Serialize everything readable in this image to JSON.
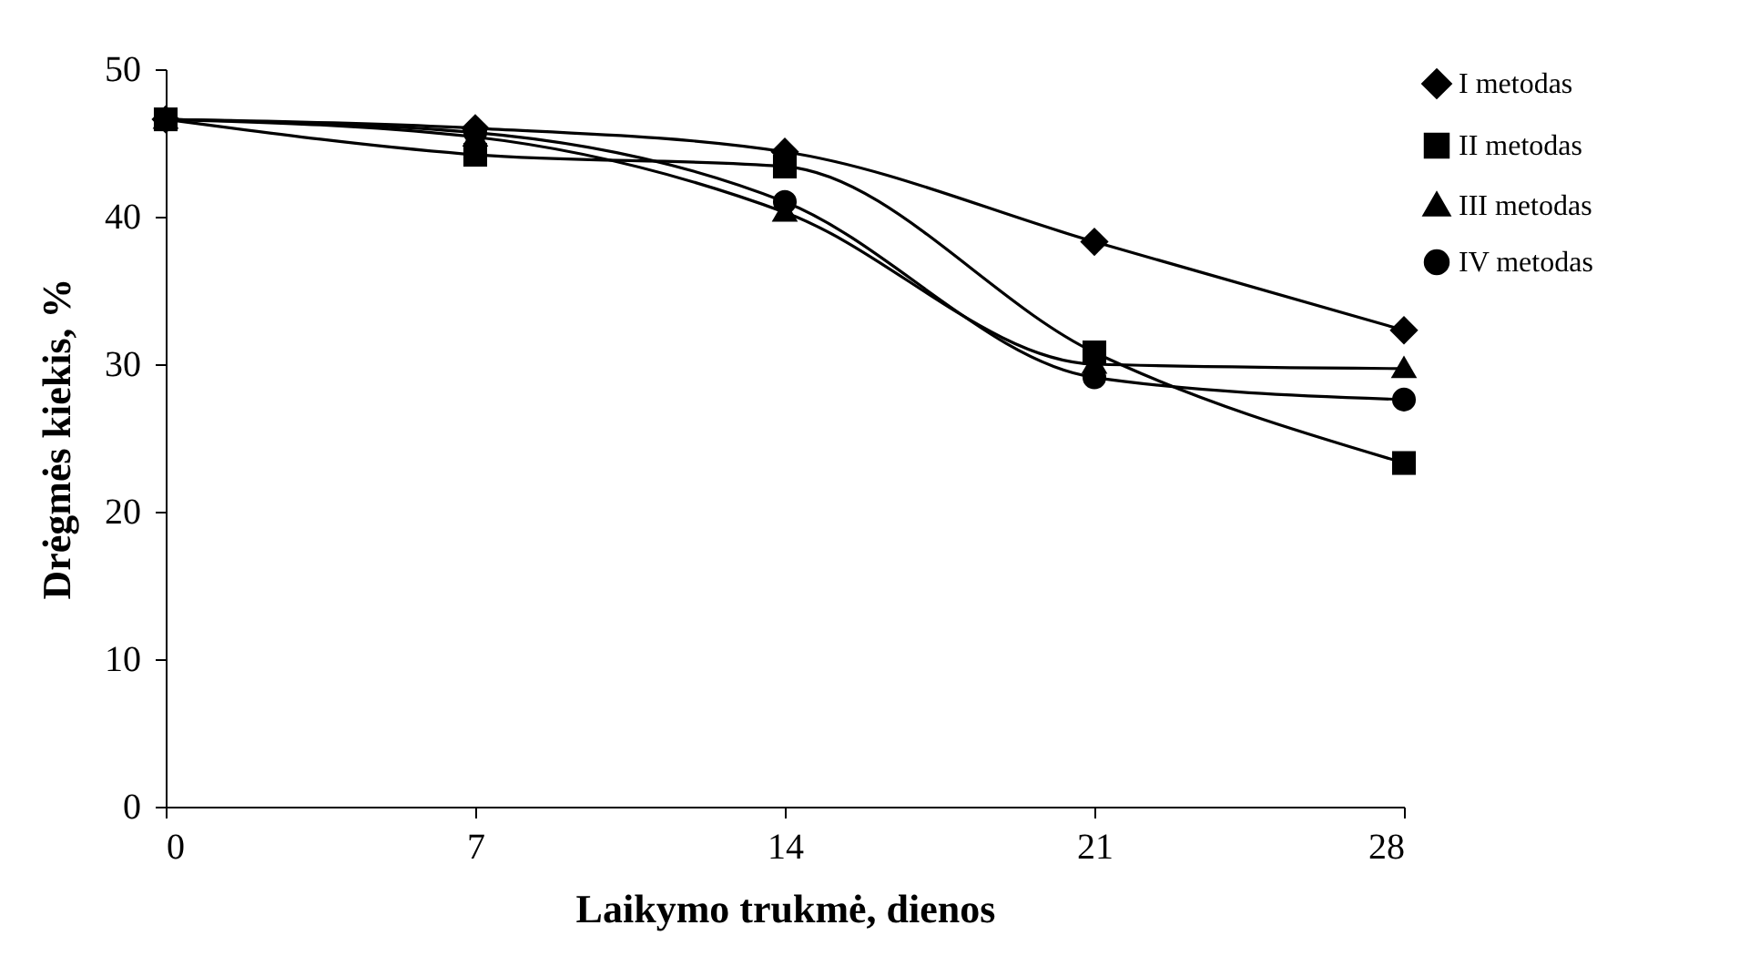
{
  "chart_data": {
    "type": "line",
    "xlabel": "Laikymo trukmė, dienos",
    "ylabel": "Drėgmės kiekis, %",
    "x": [
      0,
      7,
      14,
      21,
      28
    ],
    "xlim": [
      0,
      28
    ],
    "xticks": [
      0,
      7,
      14,
      21,
      28
    ],
    "ylim": [
      0,
      50
    ],
    "yticks": [
      0,
      10,
      20,
      30,
      40,
      50
    ],
    "grid": false,
    "legend": "top right",
    "line_style": "solid",
    "series": [
      {
        "name": "I metodas",
        "color": "#000000",
        "marker": "diamond",
        "values": [
          46.6,
          46.0,
          44.4,
          38.3,
          32.3
        ]
      },
      {
        "name": "II metodas",
        "color": "#000000",
        "marker": "square",
        "values": [
          46.6,
          44.2,
          43.4,
          30.8,
          23.3
        ]
      },
      {
        "name": "III metodas",
        "color": "#000000",
        "marker": "triangle",
        "values": [
          46.6,
          45.4,
          40.3,
          30.0,
          29.7
        ]
      },
      {
        "name": "IV metodas",
        "color": "#000000",
        "marker": "circle",
        "values": [
          46.6,
          45.7,
          41.0,
          29.1,
          27.6
        ]
      }
    ]
  }
}
